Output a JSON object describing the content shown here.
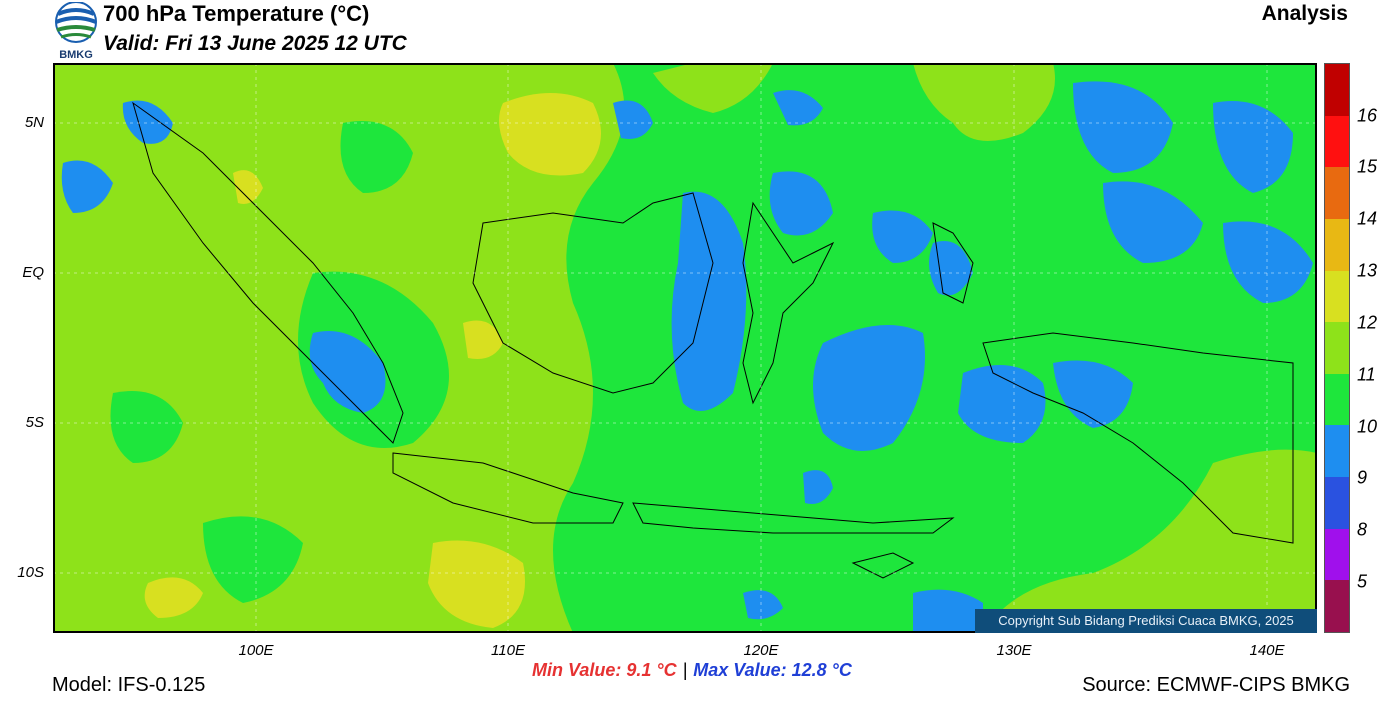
{
  "header": {
    "logo_text": "BMKG",
    "title": "700 hPa Temperature (°C)",
    "valid": "Valid: Fri 13 June 2025 12 UTC",
    "product": "Analysis"
  },
  "map": {
    "lat_labels": [
      "5N",
      "EQ",
      "5S",
      "10S"
    ],
    "lon_labels": [
      "100E",
      "110E",
      "120E",
      "130E",
      "140E"
    ],
    "copyright": "Copyright Sub Bidang Prediksi Cuaca BMKG, 2025"
  },
  "colorbar": {
    "labels": [
      "16",
      "15",
      "14",
      "13",
      "12",
      "11",
      "10",
      "9",
      "8",
      "5"
    ],
    "colors": [
      "#c00000",
      "#ff1010",
      "#e86a10",
      "#e8b814",
      "#d8e020",
      "#8ee21a",
      "#1ee63c",
      "#1e8ef0",
      "#2a52e0",
      "#a010ec",
      "#98104e"
    ]
  },
  "stats": {
    "min_label": "Min Value: 9.1 °C",
    "separator": "|",
    "max_label": "Max Value: 12.8 °C"
  },
  "footer": {
    "model": "Model: IFS-0.125",
    "source": "Source: ECMWF-CIPS BMKG"
  }
}
